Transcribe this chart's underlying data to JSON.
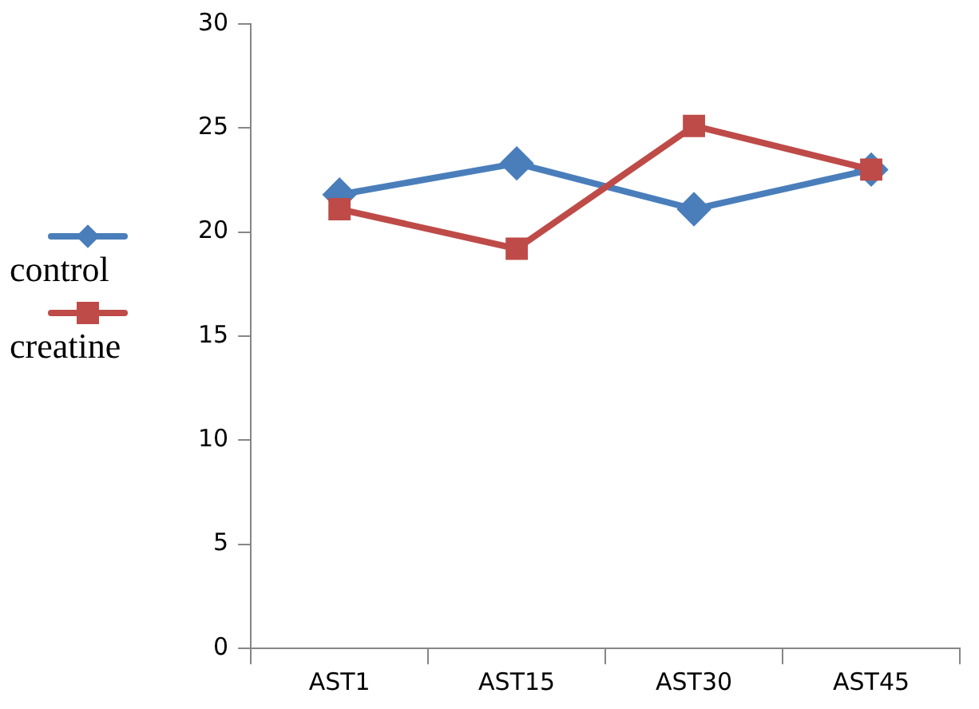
{
  "chart_data": {
    "type": "line",
    "categories": [
      "AST1",
      "AST15",
      "AST30",
      "AST45"
    ],
    "series": [
      {
        "name": "control",
        "color": "#4a7ebb",
        "marker": "diamond",
        "values": [
          21.8,
          23.3,
          21.1,
          23.0
        ]
      },
      {
        "name": "creatine",
        "color": "#be4b48",
        "marker": "square",
        "values": [
          21.1,
          19.2,
          25.1,
          23.0
        ]
      }
    ],
    "ylim": [
      0,
      30
    ],
    "yticks": [
      0,
      5,
      10,
      15,
      20,
      25,
      30
    ],
    "grid": false,
    "legend": "left"
  }
}
